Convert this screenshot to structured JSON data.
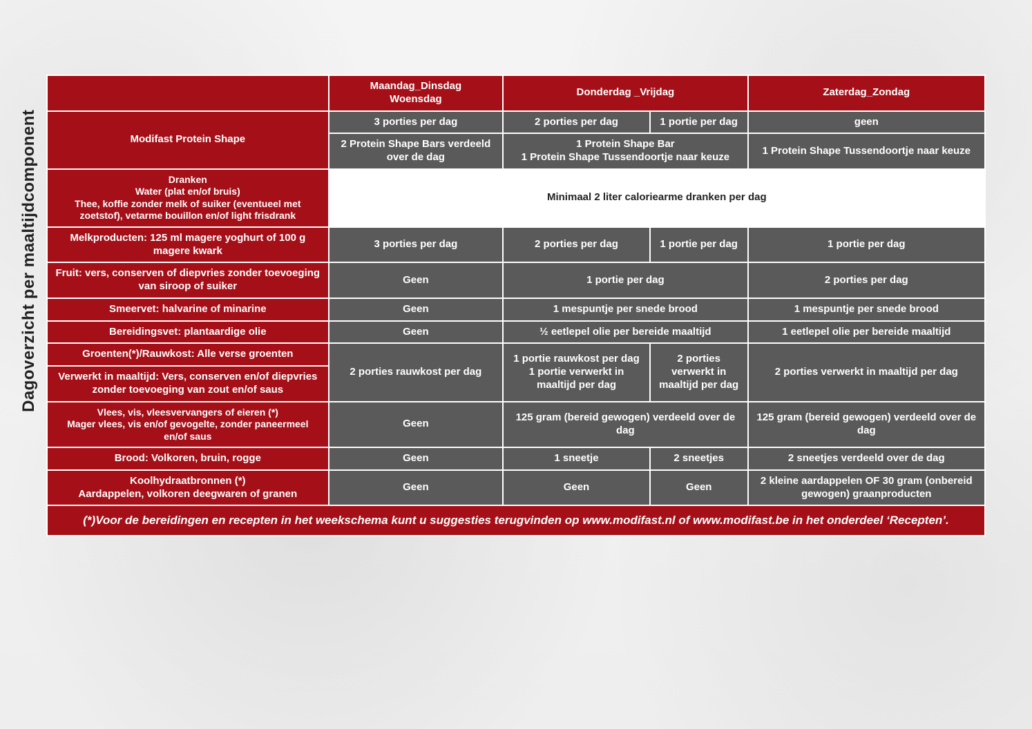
{
  "side_title": "Dagoverzicht per maaltijdcomponent",
  "headers": {
    "col_mdw": "Maandag_Dinsdag\nWoensdag",
    "col_dv": "Donderdag _Vrijdag",
    "col_zz": "Zaterdag_Zondag"
  },
  "rows": {
    "protein_shape": {
      "label": "Modifast Protein Shape",
      "r1_mdw": "3 porties per dag",
      "r1_do": "2 porties per dag",
      "r1_vr": "1 portie per dag",
      "r1_zz": "geen",
      "r2_mdw": "2  Protein Shape Bars verdeeld over de dag",
      "r2_dv": "1 Protein Shape Bar\n1  Protein Shape Tussendoortje naar keuze",
      "r2_zz": "1  Protein Shape Tussendoortje naar keuze"
    },
    "dranken": {
      "label": "Dranken\nWater (plat en/of bruis)\nThee, koffie zonder melk of suiker (eventueel met zoetstof), vetarme bouillon en/of light frisdrank",
      "all": "Minimaal 2 liter caloriearme dranken per dag"
    },
    "melk": {
      "label": "Melkproducten: 125 ml magere yoghurt of 100 g magere kwark",
      "mdw": "3 porties per dag",
      "do": "2 porties per dag",
      "vr": "1 portie per dag",
      "zz": "1 portie per dag"
    },
    "fruit": {
      "label": "Fruit: vers, conserven of diepvries zonder toevoeging van siroop of suiker",
      "mdw": "Geen",
      "dv": "1 portie per dag",
      "zz": "2 porties per dag"
    },
    "smeervet": {
      "label": "Smeervet: halvarine of minarine",
      "mdw": "Geen",
      "dv": "1 mespuntje per snede brood",
      "zz": "1 mespuntje per snede brood"
    },
    "bereidingsvet": {
      "label": "Bereidingsvet: plantaardige olie",
      "mdw": "Geen",
      "dv": "½ eetlepel olie per bereide maaltijd",
      "zz": "1 eetlepel olie per bereide maaltijd"
    },
    "groenten": {
      "label1": "Groenten(*)/Rauwkost: Alle verse groenten",
      "label2": "Verwerkt in maaltijd: Vers, conserven en/of diepvries zonder toevoeging van zout en/of saus",
      "mdw": "2 porties rauwkost per dag",
      "do": "1 portie rauwkost per dag\n1 portie verwerkt in maaltijd per dag",
      "vr": "2 porties verwerkt in maaltijd  per dag",
      "zz": "2 porties verwerkt in maaltijd per dag"
    },
    "vlees": {
      "label": "Vlees, vis, vleesvervangers of eieren (*)\nMager vlees, vis en/of gevogelte, zonder paneermeel en/of saus",
      "mdw": "Geen",
      "dv": "125 gram (bereid gewogen) verdeeld over de dag",
      "zz": "125 gram (bereid gewogen) verdeeld over de dag"
    },
    "brood": {
      "label": "Brood: Volkoren, bruin, rogge",
      "mdw": "Geen",
      "do": "1 sneetje",
      "vr": "2 sneetjes",
      "zz": "2 sneetjes verdeeld over de dag"
    },
    "koolhydraat": {
      "label": "Koolhydraatbronnen (*)\nAardappelen, volkoren deegwaren of  granen",
      "mdw": "Geen",
      "do": "Geen",
      "vr": "Geen",
      "zz": "2 kleine aardappelen  OF 30 gram (onbereid gewogen) graanproducten"
    }
  },
  "footnote": "(*)Voor de bereidingen en recepten in het weekschema kunt u suggesties terugvinden op www.modifast.nl of www.modifast.be in het onderdeel ‘Recepten’."
}
